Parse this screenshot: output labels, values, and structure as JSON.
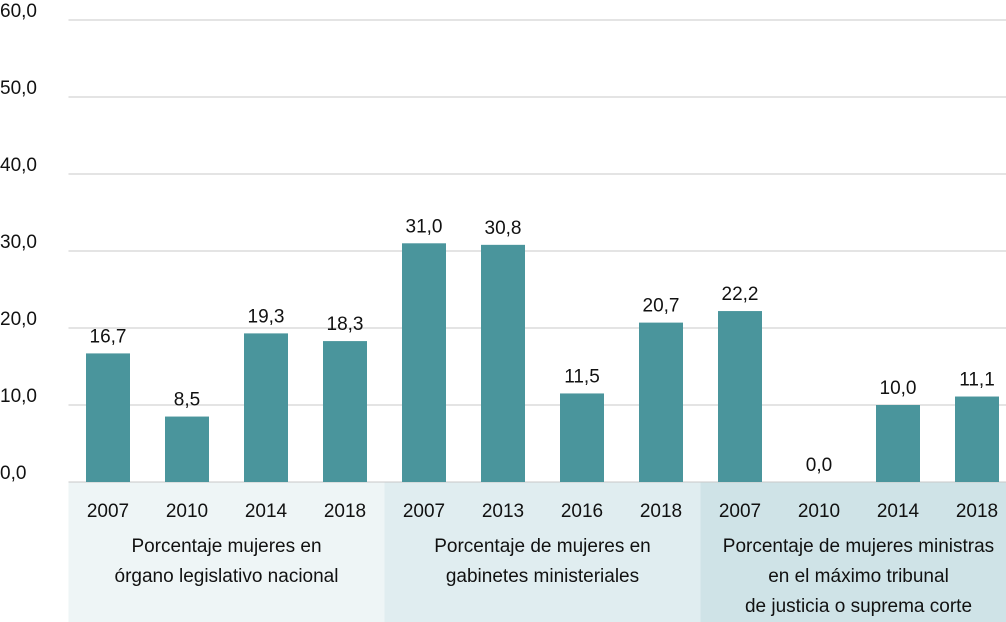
{
  "chart_data": {
    "type": "bar",
    "color": "#4a959c",
    "grid": true,
    "ylim": [
      0,
      60
    ],
    "yticks": [
      {
        "value": 0,
        "label": "0,0"
      },
      {
        "value": 10,
        "label": "10,0"
      },
      {
        "value": 20,
        "label": "20,0"
      },
      {
        "value": 30,
        "label": "30,0"
      },
      {
        "value": 40,
        "label": "40,0"
      },
      {
        "value": 50,
        "label": "50,0"
      },
      {
        "value": 60,
        "label": "60,0"
      }
    ],
    "groups": [
      {
        "name": [
          "Porcentaje mujeres en",
          "órgano legislativo nacional"
        ],
        "color": "#eef5f6",
        "categories": [
          "2007",
          "2010",
          "2014",
          "2018"
        ],
        "values": [
          16.7,
          8.5,
          19.3,
          18.3
        ],
        "value_labels": [
          "16,7",
          "8,5",
          "19,3",
          "18,3"
        ]
      },
      {
        "name": [
          "Porcentaje de mujeres en",
          "gabinetes ministeriales"
        ],
        "color": "#e0edf0",
        "categories": [
          "2007",
          "2013",
          "2016",
          "2018"
        ],
        "values": [
          31.0,
          30.8,
          11.5,
          20.7
        ],
        "value_labels": [
          "31,0",
          "30,8",
          "11,5",
          "20,7"
        ]
      },
      {
        "name": [
          "Porcentaje de mujeres ministras",
          "en el máximo tribunal",
          "de justicia o suprema corte"
        ],
        "color": "#cfe3e7",
        "categories": [
          "2007",
          "2010",
          "2014",
          "2018"
        ],
        "values": [
          22.2,
          0.0,
          10.0,
          11.1
        ],
        "value_labels": [
          "22,2",
          "0,0",
          "10,0",
          "11,1"
        ]
      }
    ]
  }
}
